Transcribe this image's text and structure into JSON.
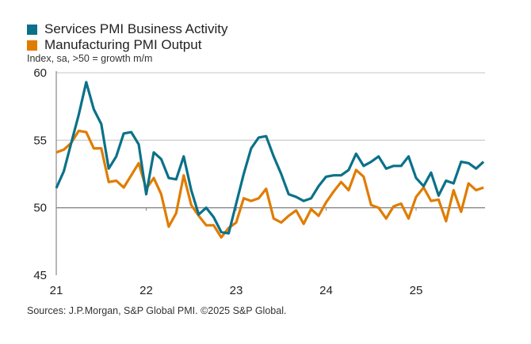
{
  "legend": [
    {
      "label": "Services PMI Business Activity",
      "color": "#0b7189"
    },
    {
      "label": "Manufacturing PMI Output",
      "color": "#e07c00"
    }
  ],
  "note": "Index, sa, >50 = growth m/m",
  "source": "Sources: J.P.Morgan, S&P Global PMI. ©2025 S&P Global.",
  "chart_data": {
    "type": "line",
    "x_start": "2021-01",
    "frequency": "monthly",
    "x_tick_labels": [
      "21",
      "22",
      "23",
      "24",
      "25"
    ],
    "y_ticks": [
      45,
      50,
      55,
      60
    ],
    "ylim": [
      45,
      60
    ],
    "grid": true,
    "reference_line": 50,
    "legend_position": "top-left",
    "series": [
      {
        "name": "Services PMI Business Activity",
        "color": "#0b7189",
        "values": [
          51.45,
          52.7,
          54.8,
          56.9,
          59.3,
          57.3,
          56.2,
          52.9,
          53.8,
          55.5,
          55.6,
          54.7,
          51.0,
          54.1,
          53.6,
          52.2,
          52.1,
          53.8,
          51.3,
          49.5,
          50.0,
          49.3,
          48.2,
          48.1,
          50.3,
          52.5,
          54.4,
          55.2,
          55.3,
          53.8,
          52.5,
          51.0,
          50.8,
          50.5,
          50.7,
          51.6,
          52.3,
          52.4,
          52.4,
          52.8,
          54.0,
          53.1,
          53.4,
          53.8,
          52.9,
          53.1,
          53.1,
          53.8,
          52.2,
          51.6,
          52.6,
          50.9,
          52.0,
          51.8,
          53.4,
          53.3,
          52.9,
          53.4
        ]
      },
      {
        "name": "Manufacturing PMI Output",
        "color": "#e07c00",
        "values": [
          54.1,
          54.3,
          54.8,
          55.7,
          55.6,
          54.4,
          54.4,
          51.9,
          52.0,
          51.5,
          52.4,
          53.3,
          51.4,
          52.2,
          51.0,
          48.6,
          49.6,
          52.4,
          50.2,
          49.4,
          48.7,
          48.7,
          47.8,
          48.5,
          48.9,
          50.7,
          50.5,
          50.7,
          51.4,
          49.2,
          48.9,
          49.4,
          49.8,
          48.8,
          49.9,
          49.4,
          50.4,
          51.2,
          51.9,
          51.3,
          52.8,
          52.3,
          50.2,
          50.0,
          49.2,
          50.1,
          50.3,
          49.2,
          50.8,
          51.5,
          50.5,
          50.6,
          49.0,
          51.3,
          49.7,
          51.8,
          51.3,
          51.5
        ]
      }
    ]
  }
}
